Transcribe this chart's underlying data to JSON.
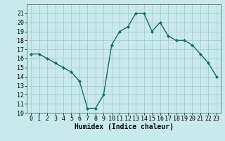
{
  "x": [
    0,
    1,
    2,
    3,
    4,
    5,
    6,
    7,
    8,
    9,
    10,
    11,
    12,
    13,
    14,
    15,
    16,
    17,
    18,
    19,
    20,
    21,
    22,
    23
  ],
  "y": [
    16.5,
    16.5,
    16.0,
    15.5,
    15.0,
    14.5,
    13.5,
    10.5,
    10.5,
    12.0,
    17.5,
    19.0,
    19.5,
    21.0,
    21.0,
    19.0,
    20.0,
    18.5,
    18.0,
    18.0,
    17.5,
    16.5,
    15.5,
    14.0
  ],
  "line_color": "#1a6b5a",
  "marker": "D",
  "marker_size": 2,
  "bg_color": "#c8eaea",
  "grid_color": "#aacccc",
  "xlabel": "Humidex (Indice chaleur)",
  "ylim": [
    10,
    22
  ],
  "xlim": [
    -0.5,
    23.5
  ],
  "yticks": [
    10,
    11,
    12,
    13,
    14,
    15,
    16,
    17,
    18,
    19,
    20,
    21
  ],
  "xticks": [
    0,
    1,
    2,
    3,
    4,
    5,
    6,
    7,
    8,
    9,
    10,
    11,
    12,
    13,
    14,
    15,
    16,
    17,
    18,
    19,
    20,
    21,
    22,
    23
  ],
  "xlabel_fontsize": 7,
  "tick_fontsize": 6,
  "line_width": 1.0
}
